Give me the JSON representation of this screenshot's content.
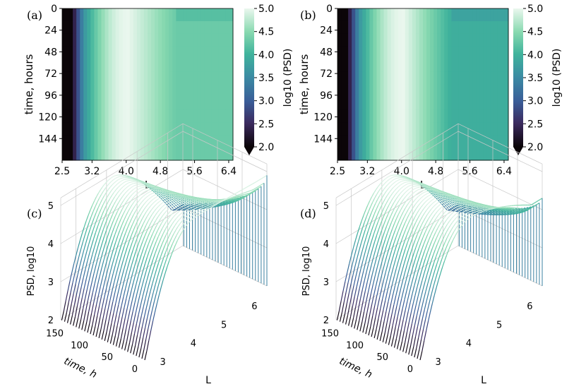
{
  "panels": {
    "a": {
      "label": "(a)"
    },
    "b": {
      "label": "(b)"
    },
    "c": {
      "label": "(c)"
    },
    "d": {
      "label": "(d)"
    }
  },
  "colors": {
    "dark": "#0b0508",
    "purple": "#3b2a5e",
    "blue": "#3b6ea0",
    "teal": "#2fa09a",
    "green": "#52c8a2",
    "light": "#e6f6ec",
    "axis": "#000000",
    "pane": "#c8c8c8"
  },
  "chart_data": [
    {
      "id": "a",
      "type": "heatmap",
      "xlabel": "L",
      "ylabel": "time, hours",
      "x_ticks": [
        "2.5",
        "3.2",
        "4.0",
        "4.8",
        "5.6",
        "6.4"
      ],
      "x_tick_values": [
        2.5,
        3.2,
        4.0,
        4.8,
        5.6,
        6.4
      ],
      "y_ticks": [
        "0",
        "24",
        "48",
        "72",
        "96",
        "120",
        "144"
      ],
      "y_tick_values": [
        0,
        24,
        48,
        72,
        96,
        120,
        144
      ],
      "xlim": [
        2.5,
        6.5
      ],
      "ylim": [
        168,
        0
      ],
      "colorbar": {
        "label": "log10 (PSD)",
        "ticks": [
          "2.0",
          "2.5",
          "3.0",
          "3.5",
          "4.0",
          "4.5",
          "5.0"
        ],
        "range": [
          2.0,
          5.0
        ],
        "extend": "min"
      },
      "profile": {
        "peak_L": 4.05,
        "peak_value": 5.0,
        "outer_value": 4.3
      }
    },
    {
      "id": "b",
      "type": "heatmap",
      "xlabel": "L",
      "ylabel": "time, hours",
      "x_ticks": [
        "2.5",
        "3.2",
        "4.0",
        "4.8",
        "5.6",
        "6.4"
      ],
      "x_tick_values": [
        2.5,
        3.2,
        4.0,
        4.8,
        5.6,
        6.4
      ],
      "y_ticks": [
        "0",
        "24",
        "48",
        "72",
        "96",
        "120",
        "144"
      ],
      "y_tick_values": [
        0,
        24,
        48,
        72,
        96,
        120,
        144
      ],
      "xlim": [
        2.5,
        6.5
      ],
      "ylim": [
        168,
        0
      ],
      "colorbar": {
        "label": "log10 (PSD)",
        "ticks": [
          "2.0",
          "2.5",
          "3.0",
          "3.5",
          "4.0",
          "4.5",
          "5.0"
        ],
        "range": [
          2.0,
          5.0
        ],
        "extend": "min"
      },
      "profile": {
        "peak_L": 4.05,
        "peak_value": 5.0,
        "outer_value": 3.95
      }
    },
    {
      "id": "c",
      "type": "line",
      "projection": "3d",
      "zlabel": "PSD, log10",
      "ylabel": "time, h",
      "xlabel": "L",
      "z_ticks": [
        "2",
        "3",
        "4",
        "5"
      ],
      "z_tick_values": [
        2,
        3,
        4,
        5
      ],
      "time_ticks": [
        "150",
        "100",
        "50",
        "0"
      ],
      "time_tick_values": [
        150,
        100,
        50,
        0
      ],
      "L_ticks": [
        "3",
        "4",
        "5",
        "6"
      ],
      "L_tick_values": [
        3,
        4,
        5,
        6
      ],
      "n_curves": 30,
      "profile": {
        "peak_L": 4.2,
        "peak_value": 4.95,
        "outer_end": 3.1,
        "outer_start": 4.9
      }
    },
    {
      "id": "d",
      "type": "line",
      "projection": "3d",
      "zlabel": "PSD, log10",
      "ylabel": "time, h",
      "xlabel": "L",
      "z_ticks": [
        "2",
        "3",
        "4",
        "5"
      ],
      "z_tick_values": [
        2,
        3,
        4,
        5
      ],
      "time_ticks": [
        "150",
        "100",
        "50",
        "0"
      ],
      "time_tick_values": [
        150,
        100,
        50,
        0
      ],
      "L_ticks": [
        "3",
        "4",
        "5",
        "6"
      ],
      "L_tick_values": [
        3,
        4,
        5,
        6
      ],
      "n_curves": 30,
      "profile": {
        "peak_L": 4.2,
        "peak_value": 4.95,
        "outer_end": 3.1,
        "outer_start": 4.3
      }
    }
  ]
}
